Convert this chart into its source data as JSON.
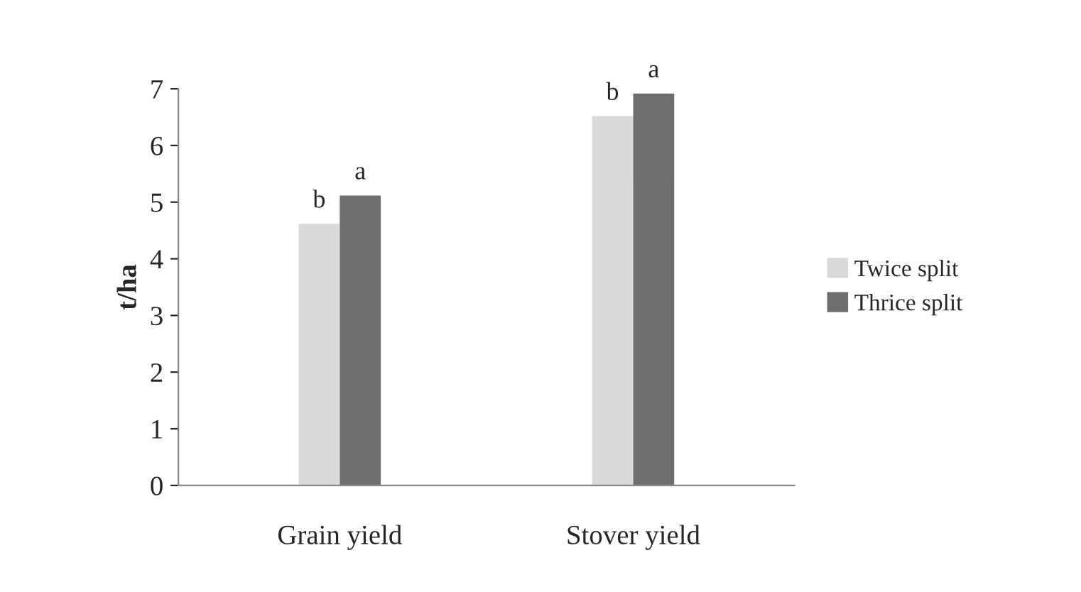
{
  "chart_data": {
    "type": "bar",
    "ylabel": "t/ha",
    "categories": [
      "Grain yield",
      "Stover yield"
    ],
    "series": [
      {
        "name": "Twice split",
        "color": "#d9d9d9",
        "values": [
          4.6,
          6.5
        ],
        "value_labels": [
          "b",
          "b"
        ]
      },
      {
        "name": "Thrice split",
        "color": "#6e6e6e",
        "values": [
          5.1,
          6.9
        ],
        "value_labels": [
          "a",
          "a"
        ]
      }
    ],
    "ylim": [
      0,
      7
    ],
    "yticks": [
      0,
      1,
      2,
      3,
      4,
      5,
      6,
      7
    ],
    "grid": false,
    "legend": "right"
  }
}
